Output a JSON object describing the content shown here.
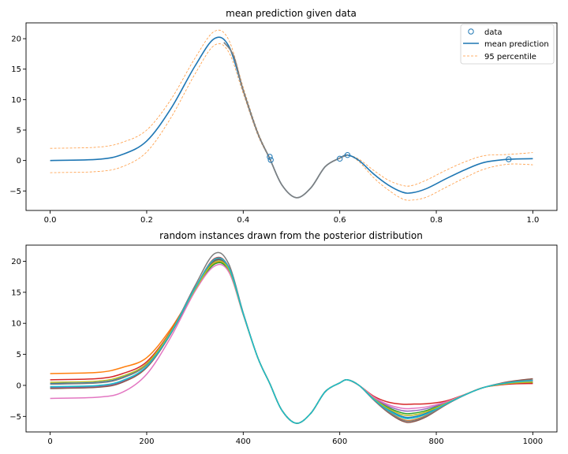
{
  "chart_data": [
    {
      "type": "line",
      "title": "mean prediction given data",
      "xlabel": "",
      "ylabel": "",
      "xlim": [
        -0.05,
        1.05
      ],
      "ylim": [
        -8.2,
        22.6
      ],
      "x_ticks": [
        0.0,
        0.2,
        0.4,
        0.6,
        0.8,
        1.0
      ],
      "x_tick_labels": [
        "0.0",
        "0.2",
        "0.4",
        "0.6",
        "0.8",
        "1.0"
      ],
      "y_ticks": [
        -5,
        0,
        5,
        10,
        15,
        20
      ],
      "y_tick_labels": [
        "−5",
        "0",
        "5",
        "10",
        "15",
        "20"
      ],
      "legend_position": "top-right",
      "legend": [
        "data",
        "mean prediction",
        "95 percentile"
      ],
      "data_points": {
        "name": "data",
        "color": "#1f77b4",
        "x": [
          0.455,
          0.457,
          0.6,
          0.616,
          0.95
        ],
        "y": [
          0.6,
          0.1,
          0.3,
          0.9,
          0.2
        ]
      },
      "mean": {
        "name": "mean prediction",
        "color": "#1f77b4",
        "x": [
          0.0,
          0.1,
          0.15,
          0.2,
          0.25,
          0.3,
          0.34,
          0.37,
          0.4,
          0.43,
          0.455,
          0.48,
          0.51,
          0.54,
          0.57,
          0.6,
          0.616,
          0.64,
          0.67,
          0.7,
          0.73,
          0.75,
          0.78,
          0.82,
          0.86,
          0.9,
          0.95,
          1.0
        ],
        "y": [
          0.0,
          0.2,
          1.0,
          3.2,
          8.5,
          15.5,
          20.0,
          18.8,
          11.5,
          4.5,
          0.3,
          -4.0,
          -6.1,
          -4.5,
          -1.0,
          0.4,
          0.9,
          0.0,
          -2.2,
          -4.0,
          -5.2,
          -5.3,
          -4.6,
          -3.0,
          -1.5,
          -0.3,
          0.2,
          0.3
        ]
      },
      "upper_95": {
        "name": "95 percentile",
        "color": "#ff7f0e",
        "x": [
          0.0,
          0.1,
          0.15,
          0.2,
          0.25,
          0.3,
          0.34,
          0.37,
          0.4,
          0.43,
          0.455,
          0.48,
          0.51,
          0.54,
          0.57,
          0.6,
          0.616,
          0.64,
          0.67,
          0.7,
          0.73,
          0.75,
          0.78,
          0.82,
          0.86,
          0.9,
          0.95,
          1.0
        ],
        "y": [
          2.0,
          2.2,
          3.0,
          5.0,
          10.0,
          16.8,
          21.2,
          19.8,
          12.0,
          4.8,
          0.4,
          -4.0,
          -6.1,
          -4.5,
          -1.0,
          0.4,
          0.9,
          0.2,
          -1.6,
          -3.2,
          -4.1,
          -4.1,
          -3.2,
          -1.6,
          -0.2,
          0.8,
          1.0,
          1.3
        ]
      },
      "lower_95": {
        "name": "95 percentile",
        "color": "#ff7f0e",
        "x": [
          0.0,
          0.1,
          0.15,
          0.2,
          0.25,
          0.3,
          0.34,
          0.37,
          0.4,
          0.43,
          0.455,
          0.48,
          0.51,
          0.54,
          0.57,
          0.6,
          0.616,
          0.64,
          0.67,
          0.7,
          0.73,
          0.75,
          0.78,
          0.82,
          0.86,
          0.9,
          0.95,
          1.0
        ],
        "y": [
          -2.0,
          -1.8,
          -1.0,
          1.4,
          7.0,
          14.2,
          18.9,
          17.8,
          11.0,
          4.2,
          0.2,
          -4.0,
          -6.1,
          -4.5,
          -1.0,
          0.4,
          0.9,
          -0.2,
          -2.8,
          -4.8,
          -6.3,
          -6.5,
          -6.0,
          -4.4,
          -2.8,
          -1.4,
          -0.6,
          -0.7
        ]
      },
      "exact_segment": {
        "color": "#7f7f7f",
        "x": [
          0.36,
          0.38,
          0.4,
          0.43,
          0.455,
          0.48,
          0.51,
          0.54,
          0.57,
          0.6,
          0.616
        ],
        "y": [
          19.4,
          17.2,
          11.5,
          4.5,
          0.3,
          -4.0,
          -6.1,
          -4.5,
          -1.0,
          0.4,
          0.9
        ]
      }
    },
    {
      "type": "line",
      "title": "random instances drawn from the posterior distribution",
      "xlabel": "",
      "ylabel": "",
      "xlim": [
        -50,
        1050
      ],
      "ylim": [
        -7.5,
        22.6
      ],
      "x_ticks": [
        0,
        200,
        400,
        600,
        800,
        1000
      ],
      "x_tick_labels": [
        "0",
        "200",
        "400",
        "600",
        "800",
        "1000"
      ],
      "y_ticks": [
        -5,
        0,
        5,
        10,
        15,
        20
      ],
      "y_tick_labels": [
        "−5",
        "0",
        "5",
        "10",
        "15",
        "20"
      ],
      "base_x": [
        0,
        100,
        150,
        200,
        250,
        300,
        340,
        370,
        400,
        430,
        455,
        480,
        510,
        540,
        570,
        600,
        616,
        640,
        670,
        700,
        730,
        750,
        780,
        820,
        860,
        900,
        950,
        1000
      ],
      "base_y": [
        0.0,
        0.2,
        1.0,
        3.2,
        8.5,
        15.5,
        20.0,
        18.8,
        11.5,
        4.5,
        0.3,
        -4.0,
        -6.1,
        -4.5,
        -1.0,
        0.4,
        0.9,
        0.0,
        -2.2,
        -4.0,
        -5.2,
        -5.3,
        -4.6,
        -3.0,
        -1.5,
        -0.3,
        0.2,
        0.3
      ],
      "series": [
        {
          "color": "#1f77b4",
          "left": 0.3,
          "peak": 0.0,
          "right": 0.9,
          "trough": 0.2
        },
        {
          "color": "#ff7f0e",
          "left": 1.9,
          "peak": -0.3,
          "right": 0.6,
          "trough": -0.3
        },
        {
          "color": "#2ca02c",
          "left": -0.3,
          "peak": -0.5,
          "right": 0.2,
          "trough": 0.8
        },
        {
          "color": "#d62728",
          "left": 0.9,
          "peak": 0.4,
          "right": 0.0,
          "trough": 2.3
        },
        {
          "color": "#9467bd",
          "left": -0.4,
          "peak": 0.2,
          "right": 0.7,
          "trough": 1.2
        },
        {
          "color": "#8c564b",
          "left": -0.5,
          "peak": 0.1,
          "right": 1.3,
          "trough": -0.6
        },
        {
          "color": "#e377c2",
          "left": -2.1,
          "peak": -0.8,
          "right": 0.5,
          "trough": 1.6
        },
        {
          "color": "#7f7f7f",
          "left": 0.2,
          "peak": 1.2,
          "right": 1.0,
          "trough": -0.4
        },
        {
          "color": "#bcbd22",
          "left": 0.5,
          "peak": -0.2,
          "right": 0.4,
          "trough": 0.5
        },
        {
          "color": "#17becf",
          "left": -0.2,
          "peak": 0.3,
          "right": 0.8,
          "trough": 0.0
        }
      ]
    }
  ]
}
